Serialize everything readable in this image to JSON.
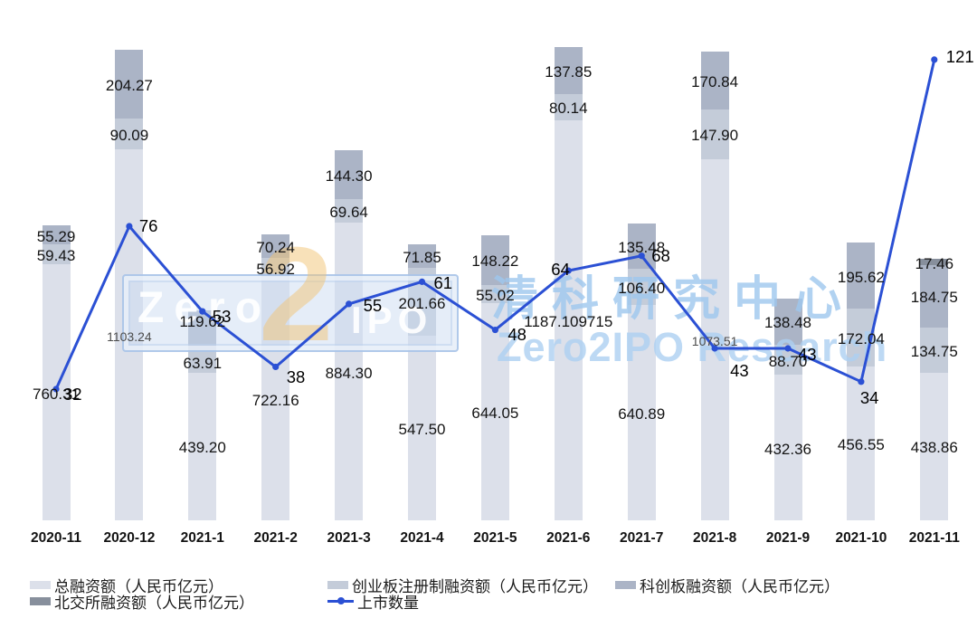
{
  "watermark": {
    "logo_zero": "Zero",
    "logo_two": "2",
    "logo_ipo": "IPO",
    "cn": "清科研究中心",
    "en": "Zero2IPO Research"
  },
  "colors": {
    "total": "#dce0ea",
    "chinext": "#c4ccd9",
    "star": "#abb4c6",
    "bse": "#878f9c",
    "line": "#2b50d4"
  },
  "legend": {
    "items": [
      {
        "key": "total",
        "label": "总融资额（人民币亿元）"
      },
      {
        "key": "chinext",
        "label": "创业板注册制融资额（人民币亿元）"
      },
      {
        "key": "star",
        "label": "科创板融资额（人民币亿元）"
      },
      {
        "key": "bse",
        "label": "北交所融资额（人民币亿元）"
      },
      {
        "key": "line",
        "label": "上市数量"
      }
    ]
  },
  "chart_data": {
    "type": "bar",
    "subtype": "stacked-bar-with-line",
    "axes_hidden": true,
    "grid": false,
    "legend_position": "bottom-left",
    "categories": [
      "2020-11",
      "2020-12",
      "2021-1",
      "2021-2",
      "2021-3",
      "2021-4",
      "2021-5",
      "2021-6",
      "2021-7",
      "2021-8",
      "2021-9",
      "2021-10",
      "2021-11"
    ],
    "series": [
      {
        "key": "total",
        "name": "总融资额（人民币亿元）",
        "values": [
          760.31,
          1103.24,
          439.2,
          722.16,
          884.3,
          547.5,
          644.05,
          1187.109715,
          640.89,
          1073.51,
          432.36,
          456.55,
          438.86
        ],
        "labels": [
          "760.31",
          "1103.24",
          "439.20",
          "722.16",
          "884.30",
          "547.50",
          "644.05",
          "1187.109715",
          "640.89",
          "1073.51",
          "432.36",
          "456.55",
          "438.86"
        ]
      },
      {
        "key": "chinext",
        "name": "创业板注册制融资额（人民币亿元）",
        "values": [
          59.43,
          90.09,
          63.91,
          56.92,
          69.64,
          201.66,
          55.02,
          80.14,
          106.4,
          147.9,
          88.7,
          172.04,
          134.75
        ],
        "labels": [
          "59.43",
          "90.09",
          "63.91",
          "56.92",
          "69.64",
          "201.66",
          "55.02",
          "80.14",
          "106.40",
          "147.90",
          "88.70",
          "172.04",
          "134.75"
        ]
      },
      {
        "key": "star",
        "name": "科创板融资额（人民币亿元）",
        "values": [
          55.29,
          204.27,
          119.62,
          70.24,
          144.3,
          71.85,
          148.22,
          137.85,
          135.48,
          170.84,
          138.48,
          195.62,
          184.75
        ],
        "labels": [
          "55.29",
          "204.27",
          "119.62",
          "70.24",
          "144.30",
          "71.85",
          "148.22",
          "137.85",
          "135.48",
          "170.84",
          "138.48",
          "195.62",
          "184.75"
        ]
      },
      {
        "key": "bse",
        "name": "北交所融资额（人民币亿元）",
        "values": [
          0,
          0,
          0,
          0,
          0,
          0,
          0,
          0,
          0,
          0,
          0,
          0,
          17.46
        ],
        "labels": [
          null,
          null,
          null,
          null,
          null,
          null,
          null,
          null,
          null,
          null,
          null,
          null,
          "17.46"
        ]
      },
      {
        "key": "line",
        "type": "line",
        "name": "上市数量",
        "values": [
          32,
          76,
          53,
          38,
          55,
          61,
          48,
          64,
          68,
          43,
          43,
          34,
          121
        ],
        "labels": [
          "32",
          "76",
          "53",
          "38",
          "55",
          "61",
          "48",
          "64",
          "68",
          "43",
          "43",
          "34",
          "121"
        ]
      }
    ]
  }
}
